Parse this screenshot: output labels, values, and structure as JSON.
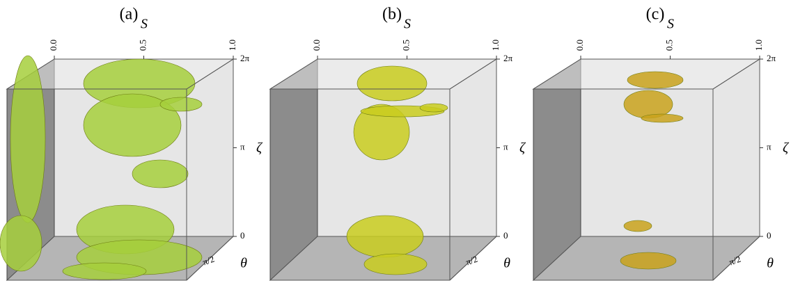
{
  "panels": [
    {
      "label": "(a)",
      "s_label": "S",
      "s_ticks": [
        "0.0",
        "0.5",
        "1.0"
      ],
      "zeta_label": "ζ",
      "zeta_ticks": [
        "2π",
        "π",
        "0"
      ],
      "theta_label": "θ",
      "theta_ticks": [
        "π/2"
      ],
      "color": "#a6cf3c"
    },
    {
      "label": "(b)",
      "s_label": "S",
      "s_ticks": [
        "0.0",
        "0.5",
        "1.0"
      ],
      "zeta_label": "ζ",
      "zeta_ticks": [
        "2π",
        "π",
        "0"
      ],
      "theta_label": "θ",
      "theta_ticks": [
        "π/2"
      ],
      "color": "#c9cc1e"
    },
    {
      "label": "(c)",
      "s_label": "S",
      "s_ticks": [
        "0.0",
        "0.5",
        "1.0"
      ],
      "zeta_label": "ζ",
      "zeta_ticks": [
        "2π",
        "π",
        "0"
      ],
      "theta_label": "θ",
      "theta_ticks": [
        "π/2"
      ],
      "color": "#c9a21c"
    }
  ]
}
